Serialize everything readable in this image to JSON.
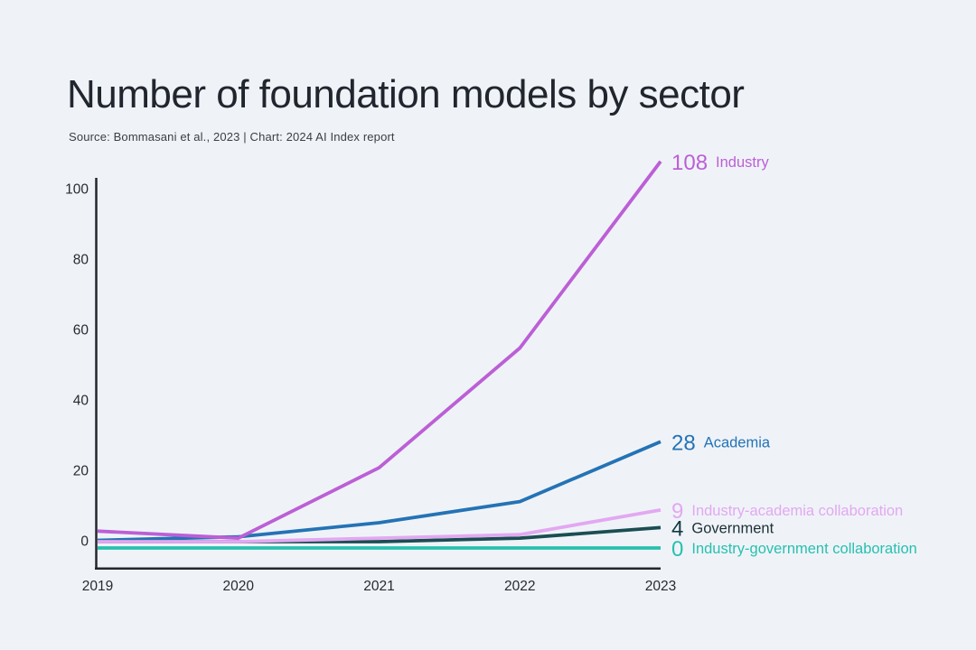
{
  "page": {
    "background_color": "#eff3f8",
    "axis_color": "#23272d",
    "tick_label_color": "#272b31",
    "title_color": "#21262e"
  },
  "header": {
    "title": "Number of foundation models by sector",
    "source": "Source: Bommasani et al., 2023 | Chart: 2024 AI Index report"
  },
  "chart_data": {
    "type": "line",
    "title": "Number of foundation models by sector",
    "x": [
      "2019",
      "2020",
      "2021",
      "2022",
      "2023"
    ],
    "xlabel": "",
    "ylabel": "",
    "ylim": [
      0,
      100
    ],
    "yticks": [
      0,
      20,
      40,
      60,
      80,
      100
    ],
    "grid": false,
    "legend_position": "right-line-end-labels",
    "series": [
      {
        "name": "Industry",
        "color": "#bc5fd6",
        "values": [
          3,
          1,
          21,
          55,
          108
        ],
        "end_value_label": "108"
      },
      {
        "name": "Academia",
        "color": "#2473b5",
        "values": [
          0,
          1,
          5,
          11,
          28
        ],
        "end_value_label": "28"
      },
      {
        "name": "Industry-academia collaboration",
        "color": "#e3a8f1",
        "values": [
          0,
          0,
          1,
          2,
          9
        ],
        "end_value_label": "9"
      },
      {
        "name": "Government",
        "color": "#1a4e52",
        "number_color": "#123a40",
        "name_color": "#1d3036",
        "values": [
          0,
          0,
          0,
          1,
          4
        ],
        "end_value_label": "4"
      },
      {
        "name": "Industry-government collaboration",
        "color": "#28c0af",
        "values": [
          0,
          0,
          0,
          0,
          0
        ],
        "end_value_label": "0"
      }
    ]
  }
}
